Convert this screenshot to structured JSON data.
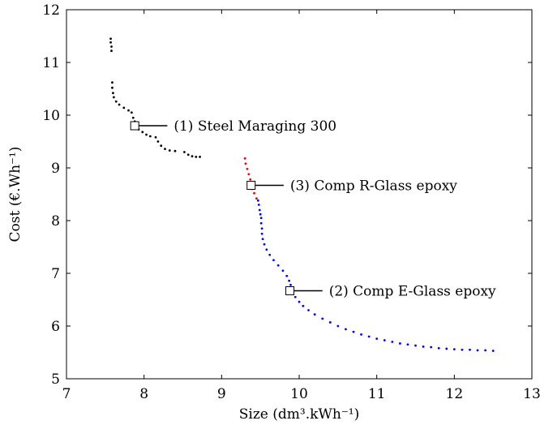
{
  "chart_data": {
    "type": "scatter",
    "title": "",
    "xlabel": "Size (dm³.kWh⁻¹)",
    "ylabel": "Cost (€.Wh⁻¹)",
    "xlim": [
      7,
      13
    ],
    "ylim": [
      5,
      12
    ],
    "xticks": [
      7,
      8,
      9,
      10,
      11,
      12,
      13
    ],
    "yticks": [
      5,
      6,
      7,
      8,
      9,
      10,
      11,
      12
    ],
    "xtick_labels": [
      "7",
      "8",
      "9",
      "10",
      "11",
      "12",
      "13"
    ],
    "ytick_labels": [
      "5",
      "6",
      "7",
      "8",
      "9",
      "10",
      "11",
      "12"
    ],
    "grid": false,
    "series": [
      {
        "color": "#000000",
        "points": [
          [
            7.57,
            11.45
          ],
          [
            7.57,
            11.38
          ],
          [
            7.58,
            11.3
          ],
          [
            7.58,
            11.22
          ],
          [
            7.59,
            10.62
          ],
          [
            7.59,
            10.52
          ],
          [
            7.6,
            10.42
          ],
          [
            7.61,
            10.34
          ],
          [
            7.64,
            10.26
          ],
          [
            7.68,
            10.2
          ],
          [
            7.74,
            10.14
          ],
          [
            7.8,
            10.09
          ],
          [
            7.84,
            10.05
          ],
          [
            7.86,
            9.95
          ],
          [
            7.88,
            9.88
          ],
          [
            7.9,
            9.8
          ],
          [
            7.93,
            9.73
          ],
          [
            7.98,
            9.68
          ],
          [
            8.03,
            9.63
          ],
          [
            8.08,
            9.6
          ],
          [
            8.15,
            9.58
          ],
          [
            8.18,
            9.5
          ],
          [
            8.22,
            9.42
          ],
          [
            8.27,
            9.36
          ],
          [
            8.33,
            9.33
          ],
          [
            8.4,
            9.32
          ],
          [
            8.52,
            9.3
          ],
          [
            8.57,
            9.25
          ],
          [
            8.62,
            9.22
          ],
          [
            8.67,
            9.21
          ],
          [
            8.72,
            9.21
          ]
        ]
      },
      {
        "color": "#ff0000",
        "points": [
          [
            9.3,
            9.18
          ],
          [
            9.31,
            9.08
          ],
          [
            9.33,
            8.98
          ],
          [
            9.35,
            8.88
          ],
          [
            9.37,
            8.78
          ],
          [
            9.38,
            8.68
          ],
          [
            9.39,
            8.6
          ],
          [
            9.42,
            8.52
          ],
          [
            9.45,
            8.42
          ]
        ]
      },
      {
        "color": "#0000ff",
        "points": [
          [
            9.47,
            8.38
          ],
          [
            9.48,
            8.3
          ],
          [
            9.49,
            8.2
          ],
          [
            9.5,
            8.12
          ],
          [
            9.51,
            8.05
          ],
          [
            9.51,
            7.95
          ],
          [
            9.52,
            7.85
          ],
          [
            9.52,
            7.75
          ],
          [
            9.53,
            7.65
          ],
          [
            9.55,
            7.55
          ],
          [
            9.58,
            7.45
          ],
          [
            9.62,
            7.35
          ],
          [
            9.67,
            7.25
          ],
          [
            9.73,
            7.15
          ],
          [
            9.79,
            7.05
          ],
          [
            9.84,
            6.95
          ],
          [
            9.87,
            6.86
          ],
          [
            9.89,
            6.78
          ],
          [
            9.91,
            6.66
          ],
          [
            9.95,
            6.55
          ],
          [
            10.0,
            6.46
          ],
          [
            10.05,
            6.38
          ],
          [
            10.12,
            6.3
          ],
          [
            10.2,
            6.22
          ],
          [
            10.3,
            6.14
          ],
          [
            10.4,
            6.07
          ],
          [
            10.5,
            6.0
          ],
          [
            10.6,
            5.94
          ],
          [
            10.7,
            5.89
          ],
          [
            10.8,
            5.84
          ],
          [
            10.9,
            5.8
          ],
          [
            11.0,
            5.76
          ],
          [
            11.1,
            5.73
          ],
          [
            11.2,
            5.7
          ],
          [
            11.3,
            5.67
          ],
          [
            11.4,
            5.65
          ],
          [
            11.5,
            5.63
          ],
          [
            11.6,
            5.61
          ],
          [
            11.7,
            5.6
          ],
          [
            11.8,
            5.58
          ],
          [
            11.9,
            5.57
          ],
          [
            12.0,
            5.56
          ],
          [
            12.1,
            5.55
          ],
          [
            12.2,
            5.55
          ],
          [
            12.3,
            5.54
          ],
          [
            12.4,
            5.54
          ],
          [
            12.5,
            5.53
          ]
        ]
      }
    ],
    "annotations": [
      {
        "label": "(1) Steel Maraging 300",
        "x": 7.88,
        "y": 9.8,
        "line_to_x": 8.3
      },
      {
        "label": "(3) Comp R-Glass epoxy",
        "x": 9.38,
        "y": 8.67,
        "line_to_x": 9.8
      },
      {
        "label": "(2) Comp E-Glass epoxy",
        "x": 9.88,
        "y": 6.67,
        "line_to_x": 10.3
      }
    ]
  }
}
